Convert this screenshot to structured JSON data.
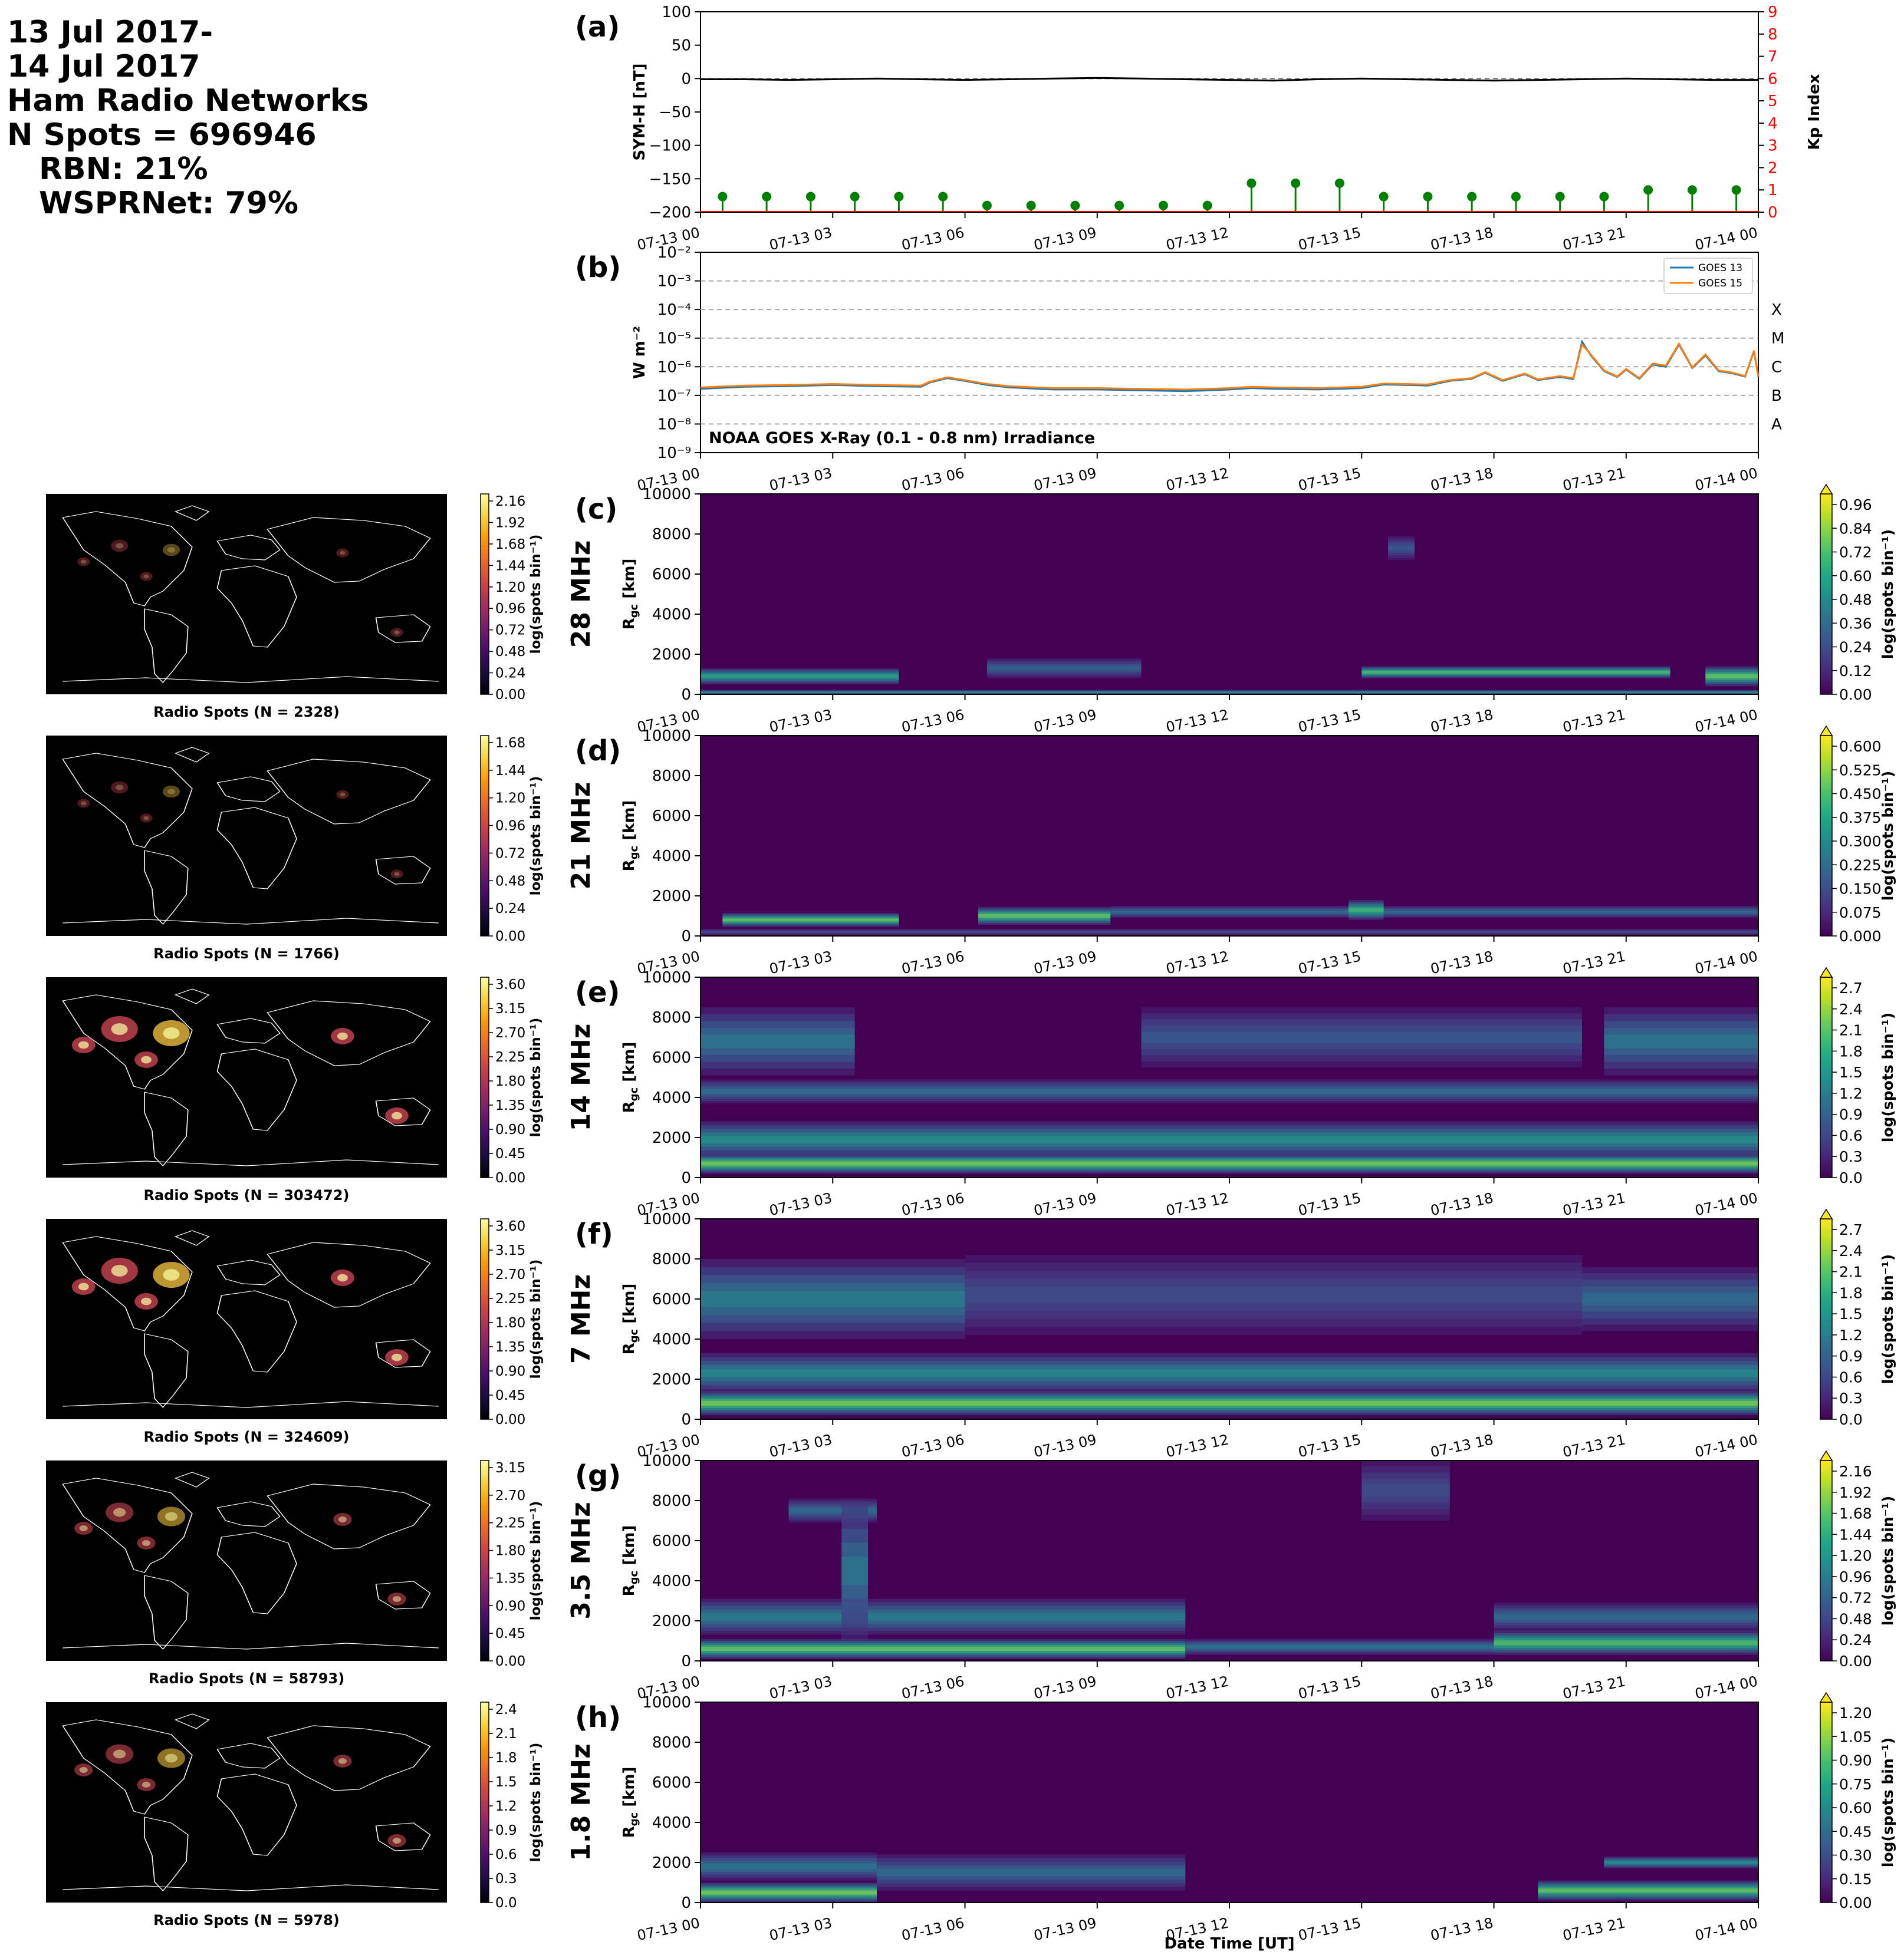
{
  "header": {
    "lines": [
      "13 Jul 2017-",
      "14 Jul 2017",
      "Ham Radio Networks",
      "N Spots = 696946"
    ],
    "sublines": [
      "RBN: 21%",
      "WSPRNet: 79%"
    ]
  },
  "chart_data": [
    {
      "type": "line",
      "panel": "(a)",
      "ylabel": "SYM-H [nT]",
      "ylim": [
        -200,
        100
      ],
      "yticks": [
        "100",
        "50",
        "0",
        "−50",
        "−100",
        "−150",
        "−200"
      ],
      "ylabel_right": "Kp Index",
      "ylim_right": [
        0,
        9
      ],
      "yticks_right": [
        "0",
        "1",
        "2",
        "3",
        "4",
        "5",
        "6",
        "7",
        "8",
        "9"
      ],
      "xticks": [
        "07-13 00",
        "07-13 03",
        "07-13 06",
        "07-13 09",
        "07-13 12",
        "07-13 15",
        "07-13 18",
        "07-13 21",
        "07-14 00"
      ],
      "symh_hours": [
        0,
        1,
        2,
        3,
        4,
        5,
        6,
        7,
        8,
        9,
        10,
        11,
        12,
        13,
        14,
        15,
        16,
        17,
        18,
        19,
        20,
        21,
        22,
        23,
        24
      ],
      "symh_values": [
        -1,
        -1,
        -2,
        -1,
        0,
        -1,
        -2,
        -1,
        0,
        1,
        0,
        -1,
        -2,
        -3,
        -1,
        0,
        -1,
        -2,
        -3,
        -2,
        -1,
        0,
        -1,
        -2,
        -2
      ],
      "kp_hours": [
        0,
        1,
        2,
        3,
        4,
        5,
        6,
        7,
        8,
        9,
        10,
        11,
        12,
        13,
        14,
        15,
        16,
        17,
        18,
        19,
        20,
        21,
        22,
        23
      ],
      "kp_values": [
        0.7,
        0.7,
        0.7,
        0.7,
        0.7,
        0.7,
        0.3,
        0.3,
        0.3,
        0.3,
        0.3,
        0.3,
        1.3,
        1.3,
        1.3,
        0.7,
        0.7,
        0.7,
        0.7,
        0.7,
        0.7,
        1.0,
        1.0,
        1.0
      ],
      "colors": {
        "symh": "#000000",
        "kp": "#008000",
        "right_axis": "#ff0000"
      }
    },
    {
      "type": "line",
      "panel": "(b)",
      "ylabel": "W m⁻²",
      "yscale": "log",
      "ylim": [
        1e-09,
        0.01
      ],
      "yticks": [
        "10⁻²",
        "10⁻³",
        "10⁻⁴",
        "10⁻⁵",
        "10⁻⁶",
        "10⁻⁷",
        "10⁻⁸",
        "10⁻⁹"
      ],
      "flare_classes": [
        "X",
        "M",
        "C",
        "B",
        "A"
      ],
      "annotation": "NOAA GOES X-Ray (0.1 - 0.8 nm) Irradiance",
      "xticks": [
        "07-13 00",
        "07-13 03",
        "07-13 06",
        "07-13 09",
        "07-13 12",
        "07-13 15",
        "07-13 18",
        "07-13 21",
        "07-14 00"
      ],
      "series": [
        {
          "name": "GOES 13",
          "color": "#1f77b4",
          "x": [
            0,
            1,
            2,
            3,
            4,
            5,
            5.2,
            5.6,
            6,
            6.5,
            7,
            8,
            9,
            10,
            11,
            12,
            12.5,
            13,
            14,
            15,
            15.5,
            16,
            16.5,
            17,
            17.5,
            17.8,
            18.2,
            18.7,
            19,
            19.5,
            19.8,
            20.0,
            20.2,
            20.5,
            20.8,
            21.0,
            21.3,
            21.6,
            21.9,
            22.2,
            22.5,
            22.8,
            23.1,
            23.4,
            23.7,
            23.9,
            24
          ],
          "y": [
            1.7e-07,
            2e-07,
            2.1e-07,
            2.3e-07,
            2.1e-07,
            2e-07,
            2.8e-07,
            4e-07,
            3.2e-07,
            2.3e-07,
            1.9e-07,
            1.6e-07,
            1.6e-07,
            1.5e-07,
            1.4e-07,
            1.6e-07,
            1.8e-07,
            1.7e-07,
            1.6e-07,
            1.8e-07,
            2.4e-07,
            2.3e-07,
            2.2e-07,
            3.2e-07,
            3.8e-07,
            6.2e-07,
            3.2e-07,
            5.5e-07,
            3.4e-07,
            4.4e-07,
            3.7e-07,
            7.5e-06,
            2.5e-06,
            7e-07,
            4.4e-07,
            8e-07,
            3.8e-07,
            1.2e-06,
            1e-06,
            6e-06,
            9e-07,
            2.5e-06,
            7e-07,
            6e-07,
            4.5e-07,
            3.5e-06,
            4.4e-07
          ]
        },
        {
          "name": "GOES 15",
          "color": "#ff7f0e",
          "x": [
            0,
            1,
            2,
            3,
            4,
            5,
            5.2,
            5.6,
            6,
            6.5,
            7,
            8,
            9,
            10,
            11,
            12,
            12.5,
            13,
            14,
            15,
            15.5,
            16,
            16.5,
            17,
            17.5,
            17.8,
            18.2,
            18.7,
            19,
            19.5,
            19.8,
            20.0,
            20.2,
            20.5,
            20.8,
            21.0,
            21.3,
            21.6,
            21.9,
            22.2,
            22.5,
            22.8,
            23.1,
            23.4,
            23.7,
            23.9,
            24
          ],
          "y": [
            1.9e-07,
            2.2e-07,
            2.3e-07,
            2.5e-07,
            2.3e-07,
            2.2e-07,
            3e-07,
            4.3e-07,
            3.4e-07,
            2.5e-07,
            2.1e-07,
            1.8e-07,
            1.8e-07,
            1.7e-07,
            1.6e-07,
            1.8e-07,
            2e-07,
            1.9e-07,
            1.8e-07,
            2e-07,
            2.6e-07,
            2.5e-07,
            2.4e-07,
            3.4e-07,
            4e-07,
            6.5e-07,
            3.4e-07,
            5.8e-07,
            3.6e-07,
            4.7e-07,
            4e-07,
            6e-06,
            2.7e-06,
            7.4e-07,
            4.6e-07,
            8.4e-07,
            4e-07,
            1.3e-06,
            1.1e-06,
            6.4e-06,
            9.5e-07,
            2.7e-06,
            7.4e-07,
            6.3e-07,
            4.7e-07,
            3.7e-06,
            4.6e-07
          ]
        }
      ]
    },
    {
      "type": "heatmap",
      "panel": "(c)",
      "band": "28 MHz",
      "ylabel": "R₉ₑ [km]",
      "ylabel_main": "R",
      "ylabel_sub": "gc",
      "ylabel_unit": " [km]",
      "ylim": [
        0,
        10000
      ],
      "yticks": [
        "10000",
        "8000",
        "6000",
        "4000",
        "2000",
        "0"
      ],
      "xticks": [
        "07-13 00",
        "07-13 03",
        "07-13 06",
        "07-13 09",
        "07-13 12",
        "07-13 15",
        "07-13 18",
        "07-13 21",
        "07-14 00"
      ],
      "colorbar_label": "log(spots bin⁻¹)",
      "colorbar_ticks": [
        "0.96",
        "0.84",
        "0.72",
        "0.60",
        "0.48",
        "0.36",
        "0.24",
        "0.12",
        "0.00"
      ],
      "colormap": "viridis",
      "map_caption": "Radio Spots (N = 2328)",
      "map_colorbar_ticks": [
        "2.16",
        "1.92",
        "1.68",
        "1.44",
        "1.20",
        "0.96",
        "0.72",
        "0.48",
        "0.24",
        "0.00"
      ],
      "features": [
        {
          "t0": 0,
          "t1": 4.5,
          "r": 900,
          "rw": 400,
          "v": 0.7
        },
        {
          "t0": 6.5,
          "t1": 10,
          "r": 1300,
          "rw": 500,
          "v": 0.35
        },
        {
          "t0": 15,
          "t1": 22,
          "r": 1100,
          "rw": 300,
          "v": 0.85
        },
        {
          "t0": 22.8,
          "t1": 24,
          "r": 900,
          "rw": 500,
          "v": 0.9
        },
        {
          "t0": 15.6,
          "t1": 16.2,
          "r": 7300,
          "rw": 600,
          "v": 0.3
        },
        {
          "t0": 0,
          "t1": 24,
          "r": 100,
          "rw": 120,
          "v": 0.6
        }
      ]
    },
    {
      "type": "heatmap",
      "panel": "(d)",
      "band": "21 MHz",
      "ylabel_main": "R",
      "ylabel_sub": "gc",
      "ylabel_unit": " [km]",
      "ylim": [
        0,
        10000
      ],
      "yticks": [
        "10000",
        "8000",
        "6000",
        "4000",
        "2000",
        "0"
      ],
      "xticks": [
        "07-13 00",
        "07-13 03",
        "07-13 06",
        "07-13 09",
        "07-13 12",
        "07-13 15",
        "07-13 18",
        "07-13 21",
        "07-14 00"
      ],
      "colorbar_label": "log(spots bin⁻¹)",
      "colorbar_ticks": [
        "0.600",
        "0.525",
        "0.450",
        "0.375",
        "0.300",
        "0.225",
        "0.150",
        "0.075",
        "0.000"
      ],
      "colormap": "viridis",
      "map_caption": "Radio Spots (N = 1766)",
      "map_colorbar_ticks": [
        "1.68",
        "1.44",
        "1.20",
        "0.96",
        "0.72",
        "0.48",
        "0.24",
        "0.00"
      ],
      "features": [
        {
          "t0": 0.5,
          "t1": 4.5,
          "r": 800,
          "rw": 350,
          "v": 0.9
        },
        {
          "t0": 6.3,
          "t1": 9.3,
          "r": 1000,
          "rw": 450,
          "v": 0.9
        },
        {
          "t0": 9.3,
          "t1": 24,
          "r": 1200,
          "rw": 300,
          "v": 0.4
        },
        {
          "t0": 14.7,
          "t1": 15.5,
          "r": 1300,
          "rw": 500,
          "v": 0.8
        },
        {
          "t0": 0,
          "t1": 24,
          "r": 200,
          "rw": 150,
          "v": 0.25
        }
      ]
    },
    {
      "type": "heatmap",
      "panel": "(e)",
      "band": "14 MHz",
      "ylabel_main": "R",
      "ylabel_sub": "gc",
      "ylabel_unit": " [km]",
      "ylim": [
        0,
        10000
      ],
      "yticks": [
        "10000",
        "8000",
        "6000",
        "4000",
        "2000",
        "0"
      ],
      "xticks": [
        "07-13 00",
        "07-13 03",
        "07-13 06",
        "07-13 09",
        "07-13 12",
        "07-13 15",
        "07-13 18",
        "07-13 21",
        "07-14 00"
      ],
      "colorbar_label": "log(spots bin⁻¹)",
      "colorbar_ticks": [
        "2.7",
        "2.4",
        "2.1",
        "1.8",
        "1.5",
        "1.2",
        "0.9",
        "0.6",
        "0.3",
        "0.0"
      ],
      "colormap": "viridis",
      "map_caption": "Radio Spots (N = 303472)",
      "map_colorbar_ticks": [
        "3.60",
        "3.15",
        "2.70",
        "2.25",
        "1.80",
        "1.35",
        "0.90",
        "0.45",
        "0.00"
      ],
      "features": [
        {
          "t0": 0,
          "t1": 24,
          "r": 700,
          "rw": 500,
          "v": 0.95
        },
        {
          "t0": 0,
          "t1": 24,
          "r": 1900,
          "rw": 900,
          "v": 0.6
        },
        {
          "t0": 0,
          "t1": 24,
          "r": 4300,
          "rw": 600,
          "v": 0.4
        },
        {
          "t0": 0,
          "t1": 3.5,
          "r": 6800,
          "rw": 1700,
          "v": 0.45
        },
        {
          "t0": 20.5,
          "t1": 24,
          "r": 6800,
          "rw": 1700,
          "v": 0.45
        },
        {
          "t0": 10,
          "t1": 20,
          "r": 7000,
          "rw": 1500,
          "v": 0.3
        }
      ]
    },
    {
      "type": "heatmap",
      "panel": "(f)",
      "band": "7 MHz",
      "ylabel_main": "R",
      "ylabel_sub": "gc",
      "ylabel_unit": " [km]",
      "ylim": [
        0,
        10000
      ],
      "yticks": [
        "10000",
        "8000",
        "6000",
        "4000",
        "2000",
        "0"
      ],
      "xticks": [
        "07-13 00",
        "07-13 03",
        "07-13 06",
        "07-13 09",
        "07-13 12",
        "07-13 15",
        "07-13 18",
        "07-13 21",
        "07-14 00"
      ],
      "colorbar_label": "log(spots bin⁻¹)",
      "colorbar_ticks": [
        "2.7",
        "2.4",
        "2.1",
        "1.8",
        "1.5",
        "1.2",
        "0.9",
        "0.6",
        "0.3",
        "0.0"
      ],
      "colormap": "viridis",
      "map_caption": "Radio Spots (N = 324609)",
      "map_colorbar_ticks": [
        "3.60",
        "3.15",
        "2.70",
        "2.25",
        "1.80",
        "1.35",
        "0.90",
        "0.45",
        "0.00"
      ],
      "features": [
        {
          "t0": 0,
          "t1": 24,
          "r": 800,
          "rw": 600,
          "v": 0.95
        },
        {
          "t0": 0,
          "t1": 24,
          "r": 2300,
          "rw": 1000,
          "v": 0.55
        },
        {
          "t0": 0,
          "t1": 6,
          "r": 6000,
          "rw": 2000,
          "v": 0.5
        },
        {
          "t0": 6,
          "t1": 20,
          "r": 6200,
          "rw": 2000,
          "v": 0.25
        },
        {
          "t0": 20,
          "t1": 24,
          "r": 6000,
          "rw": 1600,
          "v": 0.4
        }
      ]
    },
    {
      "type": "heatmap",
      "panel": "(g)",
      "band": "3.5 MHz",
      "ylabel_main": "R",
      "ylabel_sub": "gc",
      "ylabel_unit": " [km]",
      "ylim": [
        0,
        10000
      ],
      "yticks": [
        "10000",
        "8000",
        "6000",
        "4000",
        "2000",
        "0"
      ],
      "xticks": [
        "07-13 00",
        "07-13 03",
        "07-13 06",
        "07-13 09",
        "07-13 12",
        "07-13 15",
        "07-13 18",
        "07-13 21",
        "07-14 00"
      ],
      "colorbar_label": "log(spots bin⁻¹)",
      "colorbar_ticks": [
        "2.16",
        "1.92",
        "1.68",
        "1.44",
        "1.20",
        "0.96",
        "0.72",
        "0.48",
        "0.24",
        "0.00"
      ],
      "colormap": "viridis",
      "map_caption": "Radio Spots (N = 58793)",
      "map_colorbar_ticks": [
        "3.15",
        "2.70",
        "2.25",
        "1.80",
        "1.35",
        "0.90",
        "0.45",
        "0.00"
      ],
      "features": [
        {
          "t0": 0,
          "t1": 11,
          "r": 600,
          "rw": 500,
          "v": 0.9
        },
        {
          "t0": 0,
          "t1": 11,
          "r": 2200,
          "rw": 900,
          "v": 0.5
        },
        {
          "t0": 11,
          "t1": 18,
          "r": 700,
          "rw": 400,
          "v": 0.45
        },
        {
          "t0": 18,
          "t1": 24,
          "r": 900,
          "rw": 600,
          "v": 0.85
        },
        {
          "t0": 18,
          "t1": 24,
          "r": 2200,
          "rw": 700,
          "v": 0.4
        },
        {
          "t0": 2,
          "t1": 4,
          "r": 7500,
          "rw": 600,
          "v": 0.4
        },
        {
          "t0": 3.2,
          "t1": 3.8,
          "r": 4500,
          "rw": 3500,
          "v": 0.45
        },
        {
          "t0": 15,
          "t1": 17,
          "r": 8500,
          "rw": 1500,
          "v": 0.25
        }
      ]
    },
    {
      "type": "heatmap",
      "panel": "(h)",
      "band": "1.8 MHz",
      "ylabel_main": "R",
      "ylabel_sub": "gc",
      "ylabel_unit": " [km]",
      "ylim": [
        0,
        10000
      ],
      "yticks": [
        "10000",
        "8000",
        "6000",
        "4000",
        "2000",
        "0"
      ],
      "xticks": [
        "07-13 00",
        "07-13 03",
        "07-13 06",
        "07-13 09",
        "07-13 12",
        "07-13 15",
        "07-13 18",
        "07-13 21",
        "07-14 00"
      ],
      "xlabel": "Date Time [UT]",
      "colorbar_label": "log(spots bin⁻¹)",
      "colorbar_ticks": [
        "1.20",
        "1.05",
        "0.90",
        "0.75",
        "0.60",
        "0.45",
        "0.30",
        "0.15",
        "0.00"
      ],
      "colormap": "viridis",
      "map_caption": "Radio Spots (N = 5978)",
      "map_colorbar_ticks": [
        "2.4",
        "2.1",
        "1.8",
        "1.5",
        "1.2",
        "0.9",
        "0.6",
        "0.3",
        "0.0"
      ],
      "features": [
        {
          "t0": 0,
          "t1": 4,
          "r": 500,
          "rw": 500,
          "v": 0.95
        },
        {
          "t0": 0,
          "t1": 4,
          "r": 1800,
          "rw": 700,
          "v": 0.45
        },
        {
          "t0": 4,
          "t1": 11,
          "r": 1500,
          "rw": 900,
          "v": 0.4
        },
        {
          "t0": 19,
          "t1": 24,
          "r": 600,
          "rw": 500,
          "v": 0.9
        },
        {
          "t0": 20.5,
          "t1": 24,
          "r": 2000,
          "rw": 300,
          "v": 0.6
        }
      ]
    }
  ]
}
